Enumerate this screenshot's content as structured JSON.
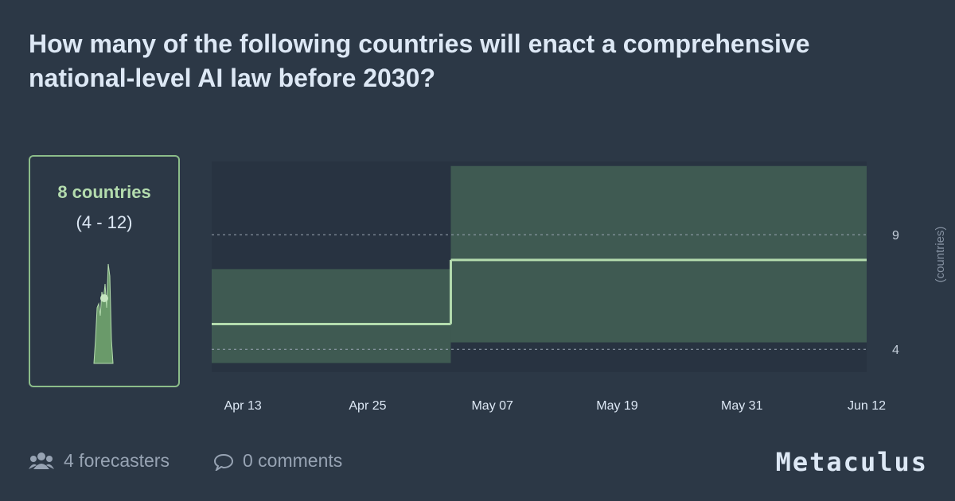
{
  "page": {
    "title": "How many of the following countries will enact a comprehensive national-level AI law before 2030?",
    "summary": {
      "value": "8 countries",
      "range": "(4 - 12)"
    },
    "footer": {
      "forecasters": "4 forecasters",
      "comments": "0 comments",
      "brand": "Metaculus"
    }
  },
  "chart_data": {
    "type": "step-band",
    "x": [
      "Apr 10",
      "May 03"
    ],
    "xlim": [
      "Apr 10",
      "Jun 12"
    ],
    "xticks": [
      "Apr 13",
      "Apr 25",
      "May 07",
      "May 19",
      "May 31",
      "Jun 12"
    ],
    "series": [
      {
        "name": "median",
        "color": "#b4dcae",
        "values": [
          5.1,
          7.9
        ]
      },
      {
        "name": "lower",
        "color": "#3f5a52",
        "values": [
          3.4,
          4.3
        ]
      },
      {
        "name": "upper",
        "color": "#3f5a52",
        "values": [
          7.5,
          12
        ]
      }
    ],
    "ylim": [
      3,
      12.2
    ],
    "yticks": [
      4,
      9
    ],
    "ylabel": "(countries)",
    "grid": true
  }
}
